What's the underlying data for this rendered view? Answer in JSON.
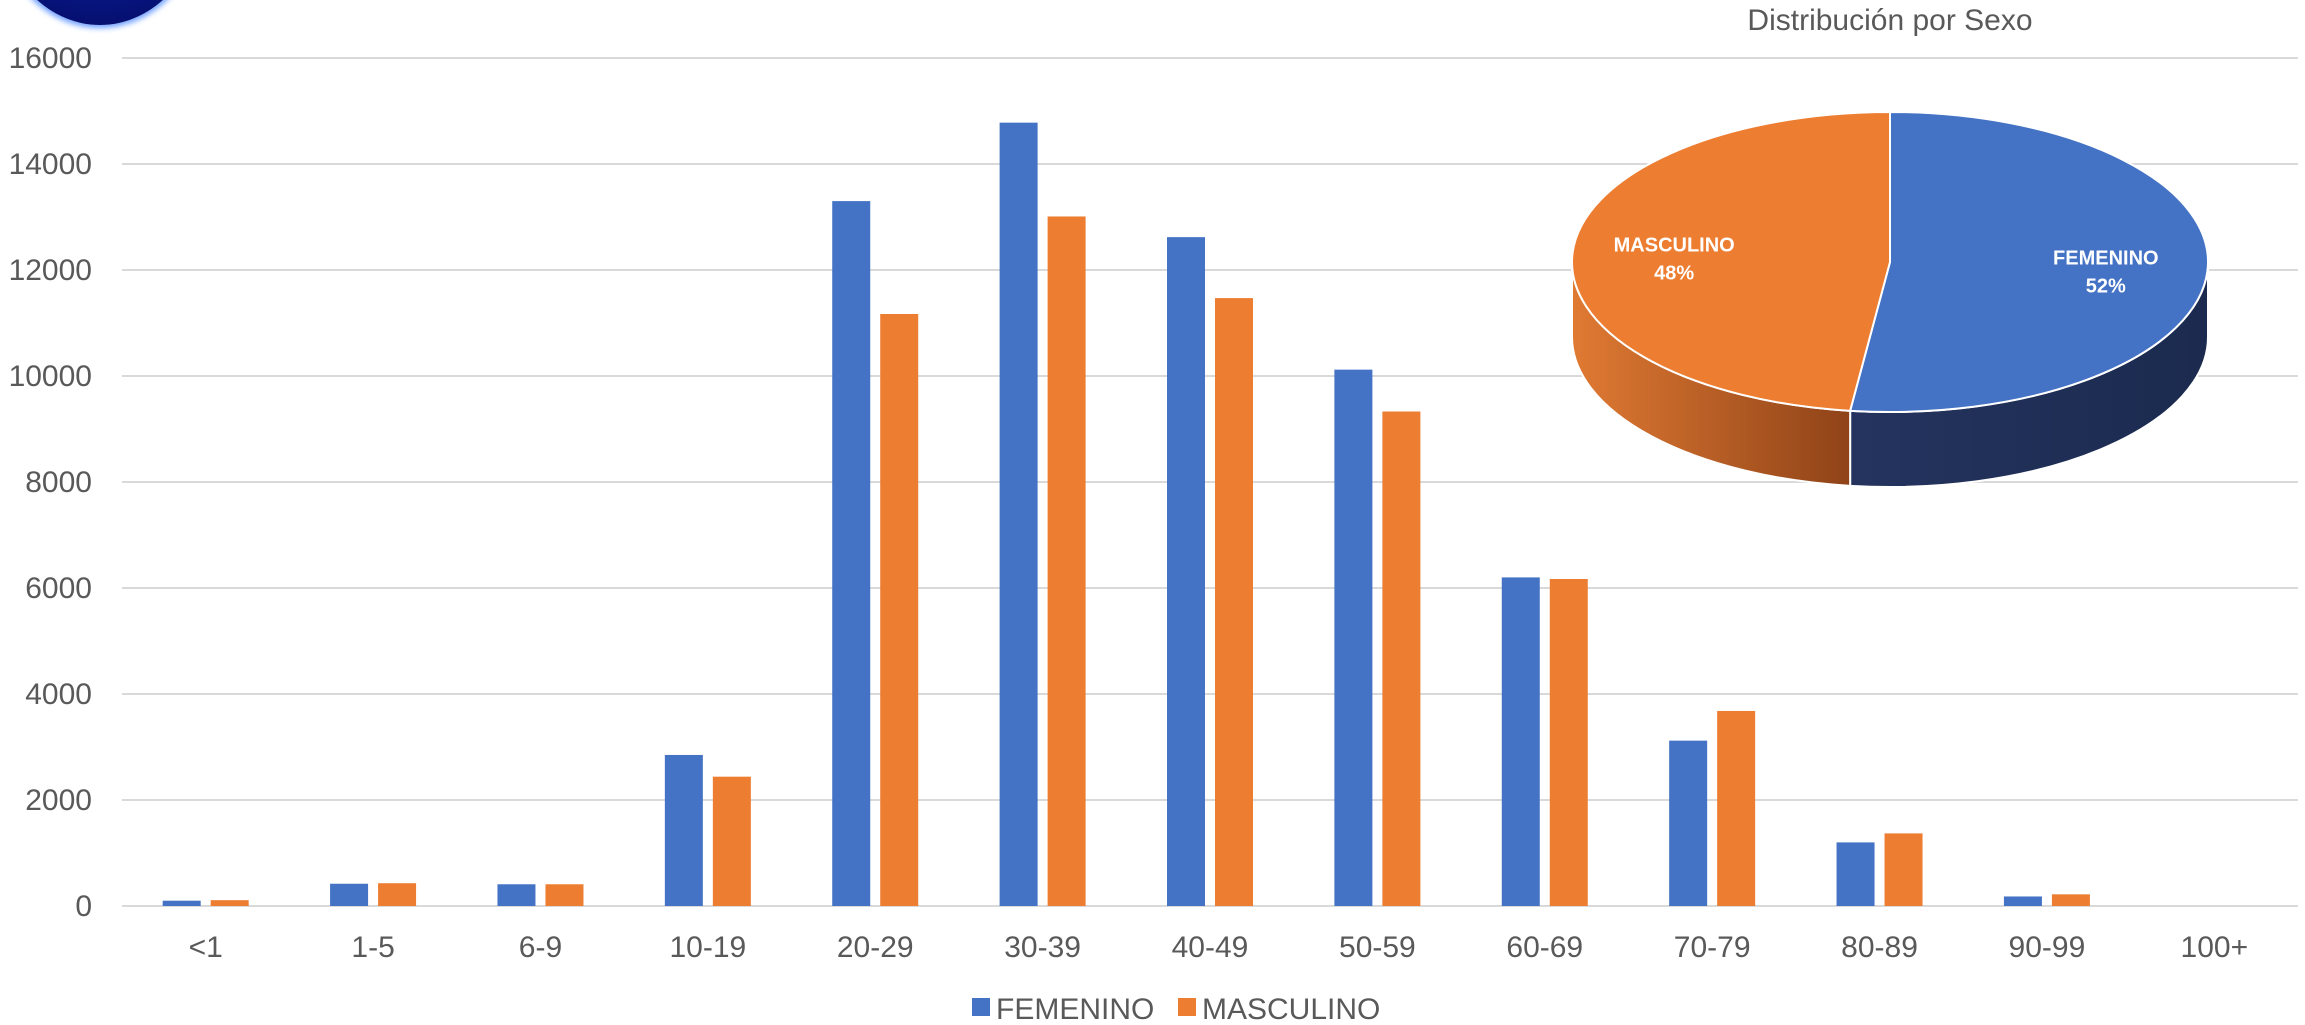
{
  "chart_data": [
    {
      "type": "bar",
      "title": "",
      "xlabel": "",
      "ylabel": "",
      "ylim": [
        0,
        16000
      ],
      "yticks": [
        0,
        2000,
        4000,
        6000,
        8000,
        10000,
        12000,
        14000,
        16000
      ],
      "grid": true,
      "legend_position": "bottom",
      "categories": [
        "<1",
        "1-5",
        "6-9",
        "10-19",
        "20-29",
        "30-39",
        "40-49",
        "50-59",
        "60-69",
        "70-79",
        "80-89",
        "90-99",
        "100+"
      ],
      "series": [
        {
          "name": "FEMENINO",
          "color": "#4472c4",
          "values": [
            100,
            420,
            410,
            2850,
            13300,
            14780,
            12620,
            10120,
            6200,
            3120,
            1200,
            180,
            0
          ]
        },
        {
          "name": "MASCULINO",
          "color": "#ed7d31",
          "values": [
            110,
            430,
            410,
            2440,
            11170,
            13010,
            11470,
            9330,
            6170,
            3680,
            1370,
            220,
            0
          ]
        }
      ]
    },
    {
      "type": "pie",
      "title": "Distribución por Sexo",
      "slices": [
        {
          "name": "FEMENINO",
          "value": 52,
          "label": "52%",
          "color": "#4472c4"
        },
        {
          "name": "MASCULINO",
          "value": 48,
          "label": "48%",
          "color": "#ed7d31"
        }
      ]
    }
  ]
}
